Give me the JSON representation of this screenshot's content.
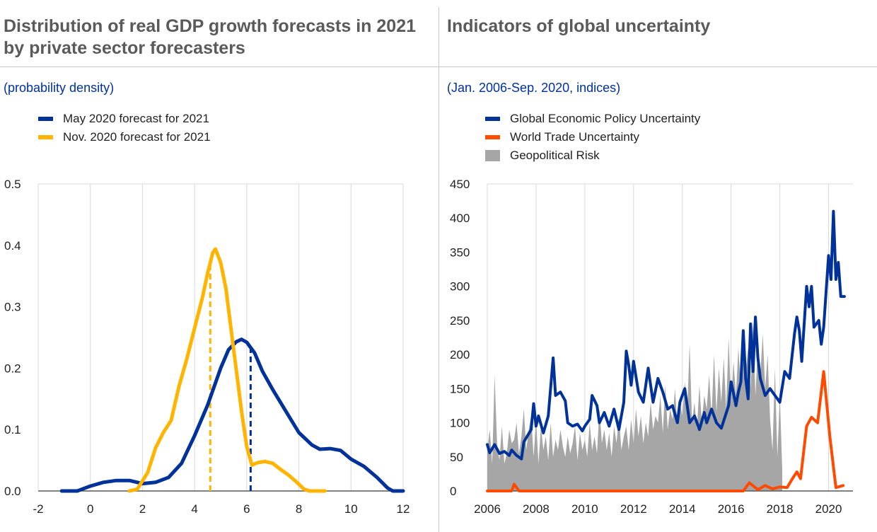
{
  "left": {
    "title": "Distribution of real GDP growth forecasts in 2021 by private sector forecasters",
    "subtitle": "(probability density)"
  },
  "right": {
    "title": "Indicators of global uncertainty",
    "subtitle": "(Jan. 2006-Sep. 2020, indices)"
  },
  "colors": {
    "blue": "#003299",
    "yellow": "#ffb400",
    "orange": "#ff4b00",
    "gray": "#a6a6a6"
  },
  "chart_data": [
    {
      "type": "line",
      "title": "",
      "xlabel": "",
      "ylabel": "",
      "xlim": [
        -2,
        12
      ],
      "ylim": [
        0,
        0.5
      ],
      "x_ticks": [
        "-2",
        "0",
        "2",
        "4",
        "6",
        "8",
        "10",
        "12"
      ],
      "y_ticks": [
        "0.0",
        "0.1",
        "0.2",
        "0.3",
        "0.4",
        "0.5"
      ],
      "legend_position": "top-left",
      "grid": "vertical",
      "series": [
        {
          "name": "May 2020 forecast for 2021",
          "color": "#003299",
          "mean_marker": 6.15,
          "points": [
            [
              -1.1,
              0
            ],
            [
              -0.5,
              0
            ],
            [
              0,
              0.008
            ],
            [
              0.5,
              0.014
            ],
            [
              1,
              0.017
            ],
            [
              1.5,
              0.017
            ],
            [
              2,
              0.012
            ],
            [
              2.5,
              0.014
            ],
            [
              3,
              0.022
            ],
            [
              3.5,
              0.045
            ],
            [
              4,
              0.09
            ],
            [
              4.5,
              0.14
            ],
            [
              5,
              0.2
            ],
            [
              5.3,
              0.23
            ],
            [
              5.6,
              0.243
            ],
            [
              5.8,
              0.247
            ],
            [
              6,
              0.242
            ],
            [
              6.3,
              0.225
            ],
            [
              6.6,
              0.195
            ],
            [
              7,
              0.165
            ],
            [
              7.5,
              0.13
            ],
            [
              8,
              0.095
            ],
            [
              8.5,
              0.075
            ],
            [
              8.8,
              0.068
            ],
            [
              9.2,
              0.069
            ],
            [
              9.6,
              0.066
            ],
            [
              10,
              0.052
            ],
            [
              10.5,
              0.04
            ],
            [
              11,
              0.022
            ],
            [
              11.4,
              0.005
            ],
            [
              11.6,
              0
            ],
            [
              12,
              0
            ]
          ]
        },
        {
          "name": "Nov. 2020 forecast for 2021",
          "color": "#ffb400",
          "mean_marker": 4.6,
          "points": [
            [
              1.5,
              0
            ],
            [
              1.8,
              0.003
            ],
            [
              2.2,
              0.03
            ],
            [
              2.5,
              0.07
            ],
            [
              2.8,
              0.095
            ],
            [
              3.1,
              0.115
            ],
            [
              3.4,
              0.17
            ],
            [
              3.7,
              0.215
            ],
            [
              4,
              0.265
            ],
            [
              4.3,
              0.315
            ],
            [
              4.5,
              0.355
            ],
            [
              4.7,
              0.388
            ],
            [
              4.8,
              0.394
            ],
            [
              5,
              0.372
            ],
            [
              5.2,
              0.33
            ],
            [
              5.5,
              0.23
            ],
            [
              5.8,
              0.13
            ],
            [
              6,
              0.072
            ],
            [
              6.2,
              0.042
            ],
            [
              6.4,
              0.046
            ],
            [
              6.7,
              0.048
            ],
            [
              7,
              0.045
            ],
            [
              7.3,
              0.035
            ],
            [
              7.6,
              0.026
            ],
            [
              7.9,
              0.015
            ],
            [
              8.2,
              0.003
            ],
            [
              8.4,
              0
            ],
            [
              9,
              0
            ]
          ]
        }
      ]
    },
    {
      "type": "line",
      "title": "",
      "xlabel": "",
      "ylabel": "",
      "xlim": [
        2006,
        2021
      ],
      "ylim": [
        0,
        450
      ],
      "x_ticks": [
        "2006",
        "2008",
        "2010",
        "2012",
        "2014",
        "2016",
        "2018",
        "2020"
      ],
      "y_ticks": [
        "0",
        "50",
        "100",
        "150",
        "200",
        "250",
        "300",
        "350",
        "400",
        "450"
      ],
      "legend_position": "top-left",
      "grid": "vertical",
      "series": [
        {
          "name": "Global Economic Policy Uncertainty",
          "color": "#003299",
          "points": [
            [
              2006,
              68
            ],
            [
              2006.1,
              56
            ],
            [
              2006.3,
              68
            ],
            [
              2006.5,
              55
            ],
            [
              2006.7,
              58
            ],
            [
              2006.9,
              52
            ],
            [
              2007,
              60
            ],
            [
              2007.2,
              52
            ],
            [
              2007.4,
              47
            ],
            [
              2007.5,
              72
            ],
            [
              2007.8,
              90
            ],
            [
              2007.9,
              128
            ],
            [
              2008,
              95
            ],
            [
              2008.1,
              110
            ],
            [
              2008.3,
              85
            ],
            [
              2008.5,
              110
            ],
            [
              2008.7,
              195
            ],
            [
              2008.8,
              140
            ],
            [
              2009,
              145
            ],
            [
              2009.2,
              132
            ],
            [
              2009.3,
              100
            ],
            [
              2009.5,
              95
            ],
            [
              2009.7,
              98
            ],
            [
              2009.9,
              88
            ],
            [
              2010,
              95
            ],
            [
              2010.2,
              105
            ],
            [
              2010.3,
              140
            ],
            [
              2010.5,
              125
            ],
            [
              2010.6,
              100
            ],
            [
              2010.8,
              115
            ],
            [
              2011,
              95
            ],
            [
              2011.2,
              120
            ],
            [
              2011.4,
              90
            ],
            [
              2011.6,
              130
            ],
            [
              2011.7,
              205
            ],
            [
              2011.8,
              185
            ],
            [
              2011.9,
              155
            ],
            [
              2012,
              190
            ],
            [
              2012.2,
              145
            ],
            [
              2012.4,
              130
            ],
            [
              2012.6,
              180
            ],
            [
              2012.8,
              130
            ],
            [
              2013,
              165
            ],
            [
              2013.2,
              145
            ],
            [
              2013.4,
              120
            ],
            [
              2013.6,
              125
            ],
            [
              2013.8,
              100
            ],
            [
              2013.9,
              130
            ],
            [
              2014.1,
              150
            ],
            [
              2014.3,
              100
            ],
            [
              2014.5,
              110
            ],
            [
              2014.7,
              90
            ],
            [
              2014.9,
              115
            ],
            [
              2015,
              100
            ],
            [
              2015.2,
              120
            ],
            [
              2015.4,
              100
            ],
            [
              2015.6,
              92
            ],
            [
              2015.9,
              125
            ],
            [
              2016,
              160
            ],
            [
              2016.2,
              125
            ],
            [
              2016.3,
              145
            ],
            [
              2016.4,
              160
            ],
            [
              2016.5,
              235
            ],
            [
              2016.6,
              165
            ],
            [
              2016.7,
              135
            ],
            [
              2016.8,
              245
            ],
            [
              2016.9,
              175
            ],
            [
              2017,
              255
            ],
            [
              2017.1,
              195
            ],
            [
              2017.2,
              165
            ],
            [
              2017.4,
              140
            ],
            [
              2017.6,
              150
            ],
            [
              2017.8,
              140
            ],
            [
              2018,
              130
            ],
            [
              2018.2,
              175
            ],
            [
              2018.4,
              165
            ],
            [
              2018.6,
              230
            ],
            [
              2018.7,
              255
            ],
            [
              2018.8,
              235
            ],
            [
              2018.9,
              190
            ],
            [
              2019.1,
              300
            ],
            [
              2019.2,
              270
            ],
            [
              2019.3,
              300
            ],
            [
              2019.4,
              240
            ],
            [
              2019.6,
              250
            ],
            [
              2019.7,
              215
            ],
            [
              2019.8,
              240
            ],
            [
              2020,
              345
            ],
            [
              2020.1,
              310
            ],
            [
              2020.2,
              410
            ],
            [
              2020.3,
              310
            ],
            [
              2020.4,
              335
            ],
            [
              2020.5,
              285
            ],
            [
              2020.65,
              285
            ]
          ]
        },
        {
          "name": "World Trade Uncertainty",
          "color": "#ff4b00",
          "points": [
            [
              2006,
              0
            ],
            [
              2007,
              0
            ],
            [
              2007.1,
              10
            ],
            [
              2007.3,
              0
            ],
            [
              2016.5,
              0
            ],
            [
              2016.75,
              12
            ],
            [
              2017.1,
              2
            ],
            [
              2017.4,
              8
            ],
            [
              2017.7,
              3
            ],
            [
              2018,
              6
            ],
            [
              2018.3,
              5
            ],
            [
              2018.55,
              20
            ],
            [
              2018.7,
              28
            ],
            [
              2018.85,
              18
            ],
            [
              2019.1,
              95
            ],
            [
              2019.3,
              108
            ],
            [
              2019.55,
              100
            ],
            [
              2019.8,
              175
            ],
            [
              2020.05,
              80
            ],
            [
              2020.3,
              5
            ],
            [
              2020.6,
              8
            ]
          ]
        },
        {
          "name": "Geopolitical Risk",
          "color": "#a6a6a6",
          "type": "area",
          "values_start": 2006,
          "values_step": 0.1,
          "values": [
            60,
            90,
            40,
            170,
            70,
            45,
            95,
            40,
            55,
            90,
            70,
            75,
            100,
            55,
            80,
            120,
            60,
            90,
            110,
            50,
            105,
            40,
            95,
            60,
            80,
            45,
            100,
            50,
            75,
            60,
            90,
            65,
            50,
            80,
            55,
            70,
            95,
            45,
            85,
            60,
            75,
            50,
            100,
            60,
            80,
            55,
            120,
            70,
            90,
            60,
            85,
            50,
            95,
            70,
            110,
            60,
            80,
            95,
            60,
            105,
            70,
            120,
            80,
            110,
            70,
            100,
            80,
            130,
            90,
            110,
            100,
            140,
            85,
            155,
            90,
            120,
            105,
            150,
            95,
            130,
            110,
            160,
            115,
            215,
            100,
            130,
            90,
            155,
            100,
            140,
            120,
            170,
            110,
            200,
            115,
            180,
            130,
            195,
            120,
            225,
            130,
            190,
            140,
            210,
            150,
            190,
            175,
            210,
            150,
            250,
            140,
            210,
            170,
            230,
            150,
            200,
            105,
            60,
            180,
            50,
            140,
            30
          ]
        }
      ]
    }
  ]
}
